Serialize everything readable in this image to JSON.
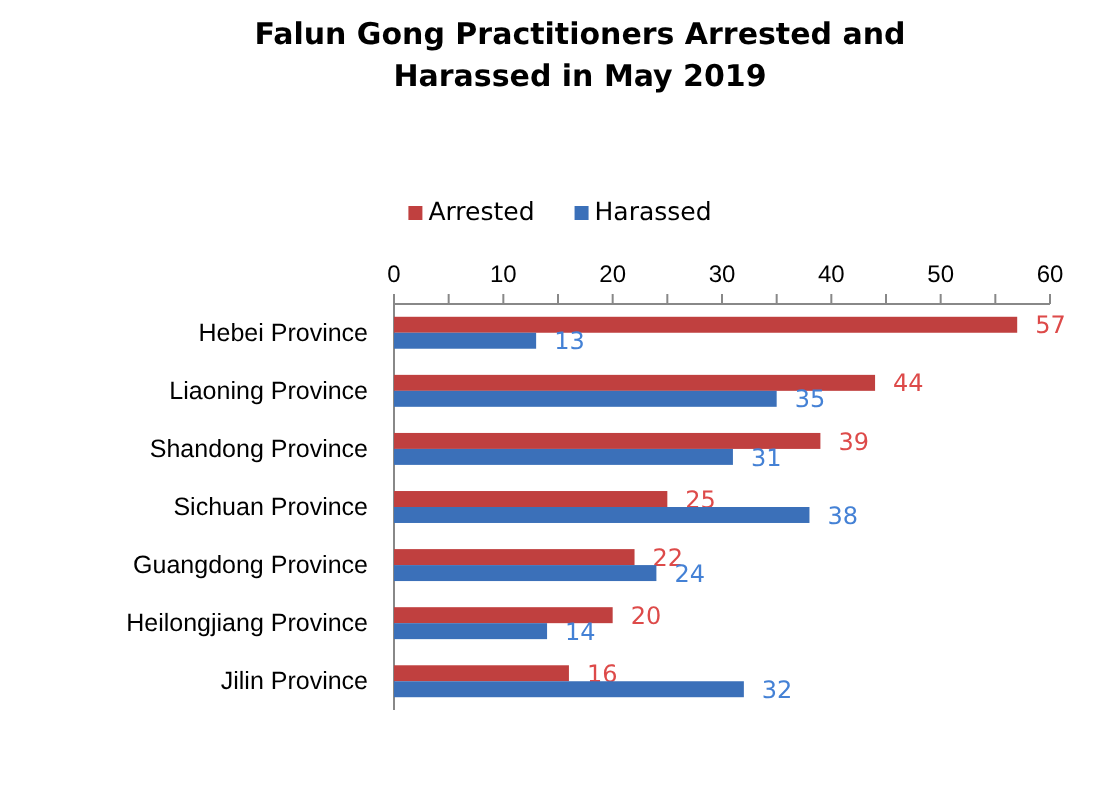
{
  "chart_data": {
    "type": "bar",
    "orientation": "horizontal",
    "title": "Falun Gong Practitioners Arrested and\nHarassed in May 2019",
    "categories": [
      "Hebei Province",
      "Liaoning Province",
      "Shandong Province",
      "Sichuan Province",
      "Guangdong Province",
      "Heilongjiang Province",
      "Jilin Province"
    ],
    "series": [
      {
        "name": "Arrested",
        "color": "#c0403f",
        "values": [
          57,
          44,
          39,
          25,
          22,
          20,
          16
        ]
      },
      {
        "name": "Harassed",
        "color": "#3b70b9",
        "values": [
          13,
          35,
          31,
          38,
          24,
          14,
          32
        ]
      }
    ],
    "xlim": [
      0,
      60
    ],
    "xticks": [
      0,
      {
        "value": 5,
        "label": null
      },
      10,
      {
        "value": 15,
        "label": null
      },
      20,
      {
        "value": 25,
        "label": null
      },
      30,
      {
        "value": 35,
        "label": null
      },
      40,
      {
        "value": 45,
        "label": null
      },
      50,
      {
        "value": 55,
        "label": null
      },
      60
    ],
    "data_labels": true,
    "legend": "top",
    "grid": false
  }
}
